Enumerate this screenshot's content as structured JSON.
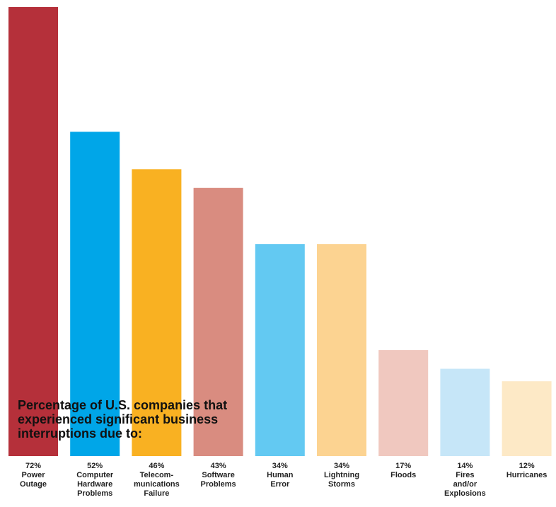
{
  "chart_data": {
    "type": "bar",
    "title": "Percentage of U.S. companies that experienced significant business interruptions due to:",
    "categories": [
      "Power Outage",
      "Computer Hardware Problems",
      "Telecom- munications Failure",
      "Software Problems",
      "Human Error",
      "Lightning Storms",
      "Floods",
      "Fires and/or Explosions",
      "Hurricanes"
    ],
    "values": [
      72,
      52,
      46,
      43,
      34,
      34,
      17,
      14,
      12
    ],
    "value_labels": [
      "72%",
      "52%",
      "46%",
      "43%",
      "34%",
      "34%",
      "17%",
      "14%",
      "12%"
    ],
    "colors": [
      "#b5303a",
      "#00a6e8",
      "#f9b122",
      "#d98c80",
      "#63c9f2",
      "#fcd391",
      "#f0c8bf",
      "#c6e6f8",
      "#fde9c6"
    ]
  }
}
